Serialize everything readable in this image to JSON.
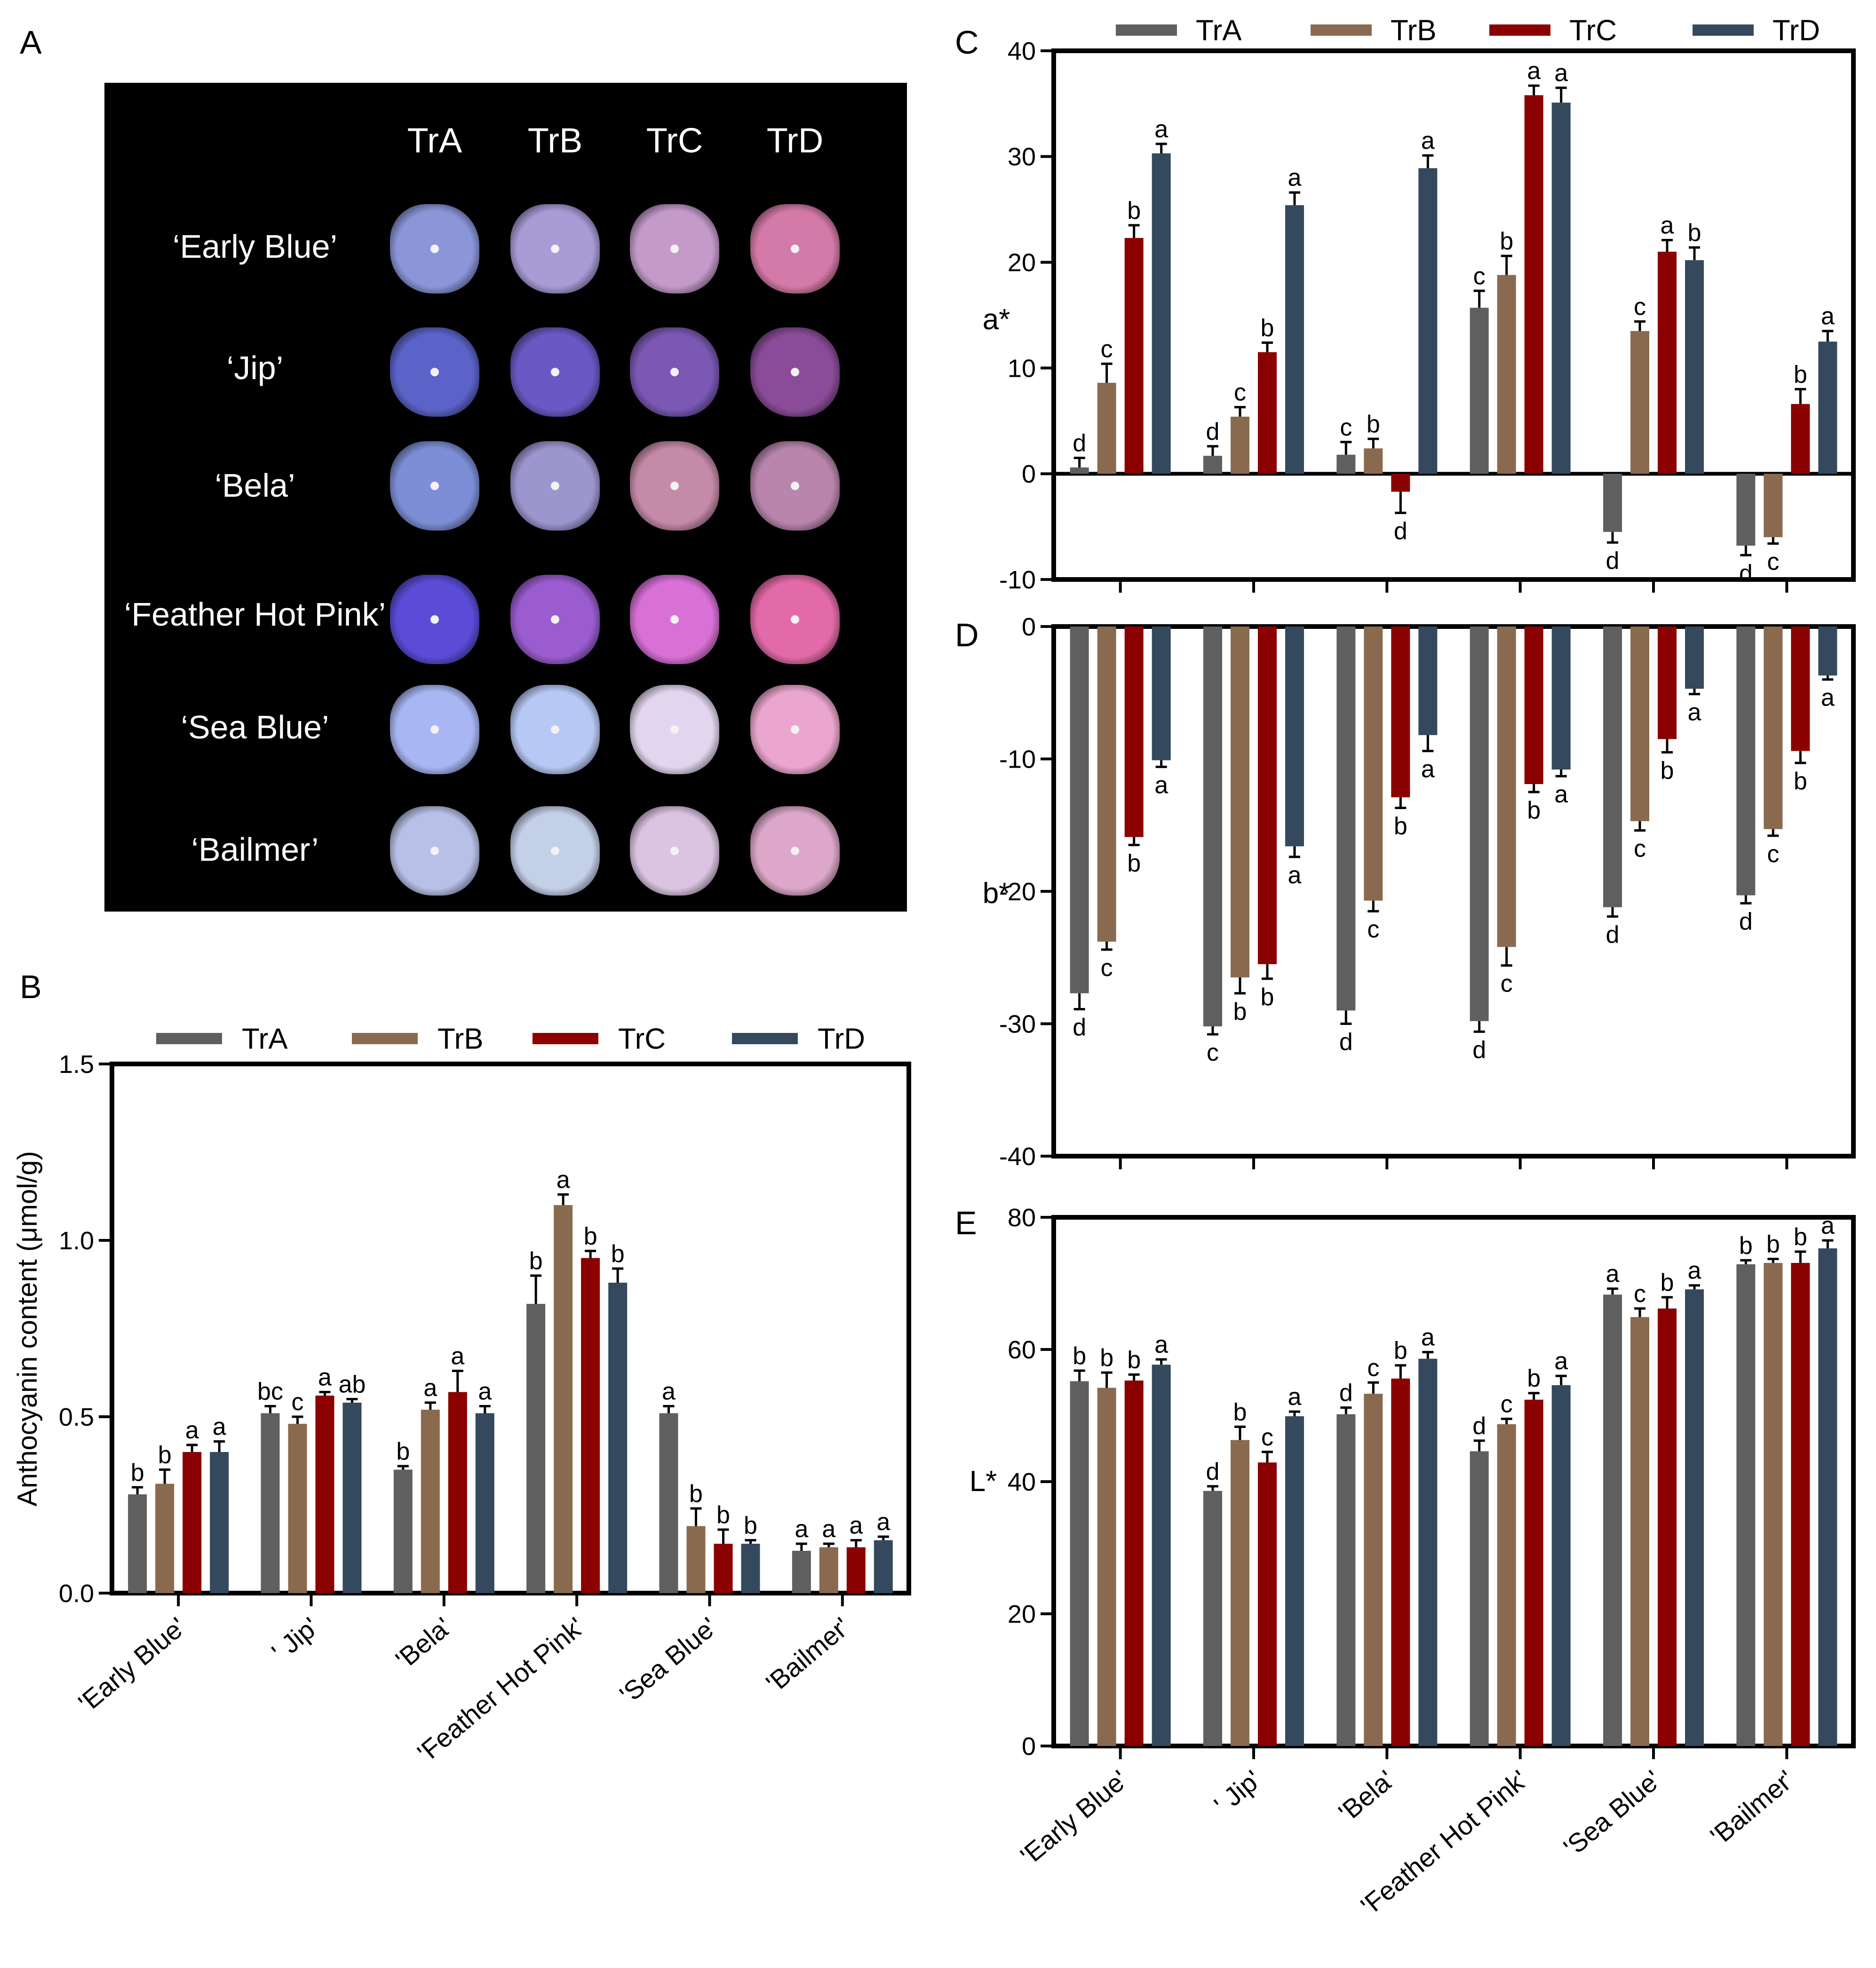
{
  "panel_labels": {
    "a": "A",
    "b": "B",
    "c": "C",
    "d": "D",
    "e": "E"
  },
  "treatments": [
    "TrA",
    "TrB",
    "TrC",
    "TrD"
  ],
  "colors": {
    "TrA": "#5f5f5f",
    "TrB": "#8a6a4f",
    "TrC": "#8b0000",
    "TrD": "#34495e"
  },
  "photo_panel": {
    "headers": [
      "TrA",
      "TrB",
      "TrC",
      "TrD"
    ],
    "cultivars": [
      "‘Early Blue’",
      "‘Jip’",
      "‘Bela’",
      "‘Feather Hot Pink’",
      "‘Sea Blue’",
      "‘Bailmer’"
    ],
    "flower_colors": [
      [
        "#8a96d8",
        "#a99bd6",
        "#c49ac9",
        "#d47aa8"
      ],
      [
        "#5b63c9",
        "#6a59c4",
        "#7a58b4",
        "#8a4c98"
      ],
      [
        "#7d8ed6",
        "#9c96cf",
        "#c48aa8",
        "#b985ac"
      ],
      [
        "#5a4cd6",
        "#9a5ccf",
        "#d870d6",
        "#e36aa8"
      ],
      [
        "#a8b6f4",
        "#b7c8f4",
        "#e2d6ee",
        "#eba6cf"
      ],
      [
        "#b8c0e8",
        "#c4cfe8",
        "#dbc4e2",
        "#dca7c9"
      ]
    ]
  },
  "chart_data": [
    {
      "id": "B",
      "type": "bar",
      "title": "",
      "xlabel": "",
      "ylabel": "Anthocyanin content  (μmol/g)",
      "ylim": [
        0,
        1.5
      ],
      "yticks": [
        0.0,
        0.5,
        1.0,
        1.5
      ],
      "ytick_labels": [
        "0.0",
        "0.5",
        "1.0",
        "1.5"
      ],
      "categories": [
        "'Early Blue'",
        "' Jip'",
        "'Bela'",
        "'Feather Hot Pink'",
        "'Sea Blue'",
        "'Bailmer'"
      ],
      "series": [
        {
          "name": "TrA",
          "values": [
            0.28,
            0.51,
            0.35,
            0.82,
            0.51,
            0.12
          ],
          "errors": [
            0.02,
            0.02,
            0.01,
            0.08,
            0.02,
            0.02
          ],
          "letters": [
            "b",
            "bc",
            "b",
            "b",
            "a",
            "a"
          ]
        },
        {
          "name": "TrB",
          "values": [
            0.31,
            0.48,
            0.52,
            1.1,
            0.19,
            0.13
          ],
          "errors": [
            0.04,
            0.02,
            0.02,
            0.03,
            0.05,
            0.01
          ],
          "letters": [
            "b",
            "c",
            "a",
            "a",
            "b",
            "a"
          ]
        },
        {
          "name": "TrC",
          "values": [
            0.4,
            0.56,
            0.57,
            0.95,
            0.14,
            0.13
          ],
          "errors": [
            0.02,
            0.01,
            0.06,
            0.02,
            0.04,
            0.02
          ],
          "letters": [
            "a",
            "a",
            "a",
            "b",
            "b",
            "a"
          ]
        },
        {
          "name": "TrD",
          "values": [
            0.4,
            0.54,
            0.51,
            0.88,
            0.14,
            0.15
          ],
          "errors": [
            0.03,
            0.01,
            0.02,
            0.04,
            0.01,
            0.01
          ],
          "letters": [
            "a",
            "ab",
            "a",
            "b",
            "b",
            "a"
          ]
        }
      ]
    },
    {
      "id": "C",
      "type": "bar",
      "title": "",
      "xlabel": "",
      "ylabel": "a*",
      "ylim": [
        -10,
        40
      ],
      "yticks": [
        -10,
        0,
        10,
        20,
        30,
        40
      ],
      "ytick_labels": [
        "-10",
        "0",
        "10",
        "20",
        "30",
        "40"
      ],
      "categories": [
        "'Early Blue'",
        "' Jip'",
        "'Bela'",
        "'Feather Hot Pink'",
        "'Sea Blue'",
        "'Bailmer'"
      ],
      "series": [
        {
          "name": "TrA",
          "values": [
            0.6,
            1.7,
            1.8,
            15.7,
            -5.5,
            -6.8
          ],
          "errors": [
            0.9,
            0.9,
            1.2,
            1.6,
            1.0,
            0.9
          ],
          "letters": [
            "d",
            "d",
            "c",
            "c",
            "d",
            "d"
          ]
        },
        {
          "name": "TrB",
          "values": [
            8.6,
            5.4,
            2.4,
            18.8,
            13.5,
            -6.0
          ],
          "errors": [
            1.8,
            0.9,
            0.9,
            1.8,
            0.9,
            0.6
          ],
          "letters": [
            "c",
            "c",
            "b",
            "b",
            "c",
            "c"
          ]
        },
        {
          "name": "TrC",
          "values": [
            22.3,
            11.5,
            -1.7,
            35.8,
            21.0,
            6.6
          ],
          "errors": [
            1.2,
            0.9,
            2.0,
            0.9,
            1.1,
            1.4
          ],
          "letters": [
            "b",
            "b",
            "d",
            "a",
            "a",
            "b"
          ]
        },
        {
          "name": "TrD",
          "values": [
            30.3,
            25.4,
            28.9,
            35.1,
            20.2,
            12.5
          ],
          "errors": [
            0.9,
            1.2,
            1.2,
            1.4,
            1.2,
            1.0
          ],
          "letters": [
            "a",
            "a",
            "a",
            "a",
            "b",
            "a"
          ]
        }
      ]
    },
    {
      "id": "D",
      "type": "bar",
      "title": "",
      "xlabel": "",
      "ylabel": "b*",
      "ylim": [
        -40,
        0
      ],
      "yticks": [
        -40,
        -30,
        -20,
        -10,
        0
      ],
      "ytick_labels": [
        "-40",
        "-30",
        "-20",
        "-10",
        "0"
      ],
      "categories": [
        "'Early Blue'",
        "' Jip'",
        "'Bela'",
        "'Feather Hot Pink'",
        "'Sea Blue'",
        "'Bailmer'"
      ],
      "series": [
        {
          "name": "TrA",
          "values": [
            -27.7,
            -30.2,
            -29.0,
            -29.8,
            -21.2,
            -20.3
          ],
          "errors": [
            1.2,
            0.6,
            1.0,
            0.8,
            0.7,
            0.6
          ],
          "letters": [
            "d",
            "c",
            "d",
            "d",
            "d",
            "d"
          ]
        },
        {
          "name": "TrB",
          "values": [
            -23.8,
            -26.5,
            -20.7,
            -24.2,
            -14.7,
            -15.3
          ],
          "errors": [
            0.6,
            1.2,
            0.8,
            1.4,
            0.7,
            0.5
          ],
          "letters": [
            "c",
            "b",
            "c",
            "c",
            "c",
            "c"
          ]
        },
        {
          "name": "TrC",
          "values": [
            -15.9,
            -25.5,
            -12.9,
            -11.9,
            -8.5,
            -9.4
          ],
          "errors": [
            0.6,
            1.1,
            0.8,
            0.6,
            1.0,
            0.9
          ],
          "letters": [
            "b",
            "b",
            "b",
            "b",
            "b",
            "b"
          ]
        },
        {
          "name": "TrD",
          "values": [
            -10.1,
            -16.6,
            -8.2,
            -10.8,
            -4.7,
            -3.7
          ],
          "errors": [
            0.5,
            0.8,
            1.2,
            0.5,
            0.4,
            0.3
          ],
          "letters": [
            "a",
            "a",
            "a",
            "a",
            "a",
            "a"
          ]
        }
      ]
    },
    {
      "id": "E",
      "type": "bar",
      "title": "",
      "xlabel": "",
      "ylabel": "L*",
      "ylim": [
        0,
        80
      ],
      "yticks": [
        0,
        20,
        40,
        60,
        80
      ],
      "ytick_labels": [
        "0",
        "20",
        "40",
        "60",
        "80"
      ],
      "categories": [
        "'Early Blue'",
        "' Jip'",
        "'Bela'",
        "'Feather Hot Pink'",
        "'Sea Blue'",
        "'Bailmer'"
      ],
      "series": [
        {
          "name": "TrA",
          "values": [
            55.2,
            38.6,
            50.2,
            44.6,
            68.3,
            72.9
          ],
          "errors": [
            1.6,
            0.7,
            1.0,
            1.6,
            0.9,
            0.6
          ],
          "letters": [
            "b",
            "d",
            "d",
            "d",
            "a",
            "b"
          ]
        },
        {
          "name": "TrB",
          "values": [
            54.2,
            46.3,
            53.3,
            48.7,
            64.9,
            73.1
          ],
          "errors": [
            2.3,
            2.0,
            1.7,
            0.8,
            1.3,
            0.6
          ],
          "letters": [
            "b",
            "b",
            "c",
            "c",
            "c",
            "b"
          ]
        },
        {
          "name": "TrC",
          "values": [
            55.3,
            42.9,
            55.6,
            52.4,
            66.2,
            73.1
          ],
          "errors": [
            0.9,
            1.6,
            2.0,
            1.0,
            1.7,
            1.7
          ],
          "letters": [
            "b",
            "c",
            "b",
            "b",
            "b",
            "b"
          ]
        },
        {
          "name": "TrD",
          "values": [
            57.7,
            49.9,
            58.6,
            54.6,
            69.1,
            75.3
          ],
          "errors": [
            0.8,
            0.7,
            1.0,
            1.4,
            0.6,
            1.2
          ],
          "letters": [
            "a",
            "a",
            "a",
            "a",
            "a",
            "a"
          ]
        }
      ]
    }
  ]
}
